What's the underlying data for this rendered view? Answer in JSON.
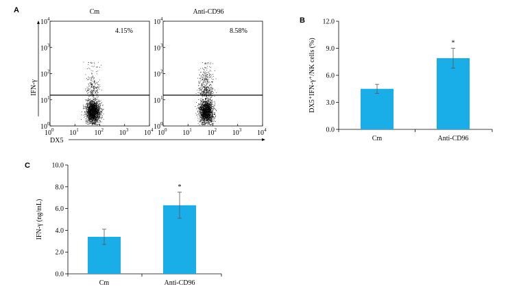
{
  "chart_data": [
    {
      "panel": "A",
      "type": "scatter",
      "panels": [
        {
          "title": "Cm",
          "percent": "4.15%"
        },
        {
          "title": "Anti-CD96",
          "percent": "8.58%"
        }
      ],
      "xlabel": "DX5",
      "ylabel": "IFN-γ",
      "x_scale": "log",
      "y_scale": "log",
      "xlim": [
        1,
        10000
      ],
      "ylim": [
        1,
        10000
      ],
      "gate_y": 15,
      "tick_labels": [
        "10",
        "10",
        "10",
        "10",
        "10"
      ],
      "tick_exponents": [
        "0",
        "1",
        "2",
        "3",
        "4"
      ]
    },
    {
      "panel": "B",
      "type": "bar",
      "categories": [
        "Cm",
        "Anti-CD96"
      ],
      "values": [
        4.5,
        7.9
      ],
      "errors": [
        0.5,
        1.1
      ],
      "significance": [
        "",
        "*"
      ],
      "ylabel": "DX5⁺IFN-γ⁺/NK cells (%)",
      "ylim": [
        0,
        12
      ],
      "yticks": [
        "0.0",
        "3.0",
        "6.0",
        "9.0",
        "12.0"
      ],
      "bar_color": "#1aaee8"
    },
    {
      "panel": "C",
      "type": "bar",
      "categories": [
        "Cm",
        "Anti-CD96"
      ],
      "values": [
        3.4,
        6.3
      ],
      "errors": [
        0.7,
        1.2
      ],
      "significance": [
        "",
        "*"
      ],
      "ylabel": "IFN-γ (ng/mL)",
      "ylim": [
        0,
        10
      ],
      "yticks": [
        "0.0",
        "2.0",
        "4.0",
        "6.0",
        "8.0",
        "10.0"
      ],
      "bar_color": "#1aaee8"
    }
  ]
}
